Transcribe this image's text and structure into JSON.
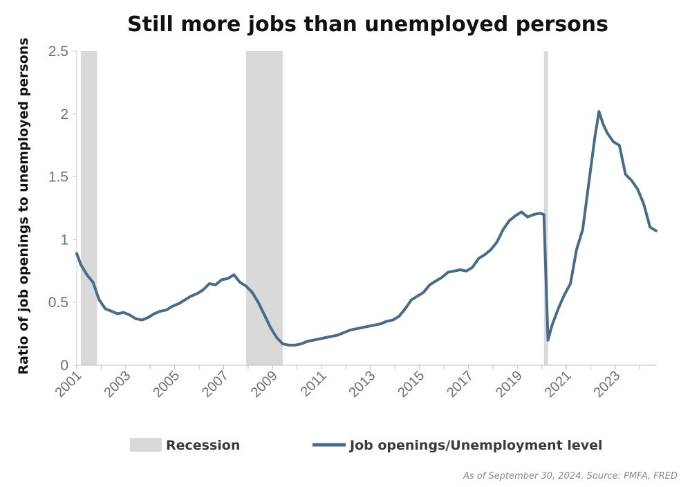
{
  "chart_data": {
    "type": "line",
    "title": "Still more jobs than unemployed persons",
    "xlabel": "",
    "ylabel": "Ratio of job openings to unemployed persons",
    "ylim": [
      0,
      2.5
    ],
    "xlim": [
      "2001-01",
      "2024-09"
    ],
    "y_ticks": [
      "0",
      "0.5",
      "1",
      "1.5",
      "2",
      "2.5"
    ],
    "x_ticks": [
      "2001",
      "2003",
      "2005",
      "2007",
      "2009",
      "2011",
      "2013",
      "2015",
      "2017",
      "2019",
      "2021",
      "2023"
    ],
    "grid": false,
    "legend": {
      "position": "bottom",
      "entries": [
        "Recession",
        "Job openings/Unemployment level"
      ]
    },
    "recessions": [
      {
        "label": "Recession",
        "start": "2001-03",
        "end": "2001-11"
      },
      {
        "label": "Recession",
        "start": "2007-12",
        "end": "2009-06"
      },
      {
        "label": "Recession",
        "start": "2020-02",
        "end": "2020-04"
      }
    ],
    "series": [
      {
        "name": "Job openings/Unemployment level",
        "color": "#4a6b87",
        "points": [
          [
            "2001-01",
            0.89
          ],
          [
            "2001-03",
            0.8
          ],
          [
            "2001-06",
            0.72
          ],
          [
            "2001-09",
            0.66
          ],
          [
            "2001-12",
            0.52
          ],
          [
            "2002-03",
            0.45
          ],
          [
            "2002-06",
            0.43
          ],
          [
            "2002-09",
            0.41
          ],
          [
            "2002-12",
            0.42
          ],
          [
            "2003-03",
            0.4
          ],
          [
            "2003-06",
            0.37
          ],
          [
            "2003-09",
            0.36
          ],
          [
            "2003-12",
            0.38
          ],
          [
            "2004-03",
            0.41
          ],
          [
            "2004-06",
            0.43
          ],
          [
            "2004-09",
            0.44
          ],
          [
            "2004-12",
            0.47
          ],
          [
            "2005-03",
            0.49
          ],
          [
            "2005-06",
            0.52
          ],
          [
            "2005-09",
            0.55
          ],
          [
            "2005-12",
            0.57
          ],
          [
            "2006-03",
            0.6
          ],
          [
            "2006-06",
            0.65
          ],
          [
            "2006-09",
            0.64
          ],
          [
            "2006-12",
            0.68
          ],
          [
            "2007-03",
            0.69
          ],
          [
            "2007-06",
            0.72
          ],
          [
            "2007-09",
            0.66
          ],
          [
            "2007-12",
            0.63
          ],
          [
            "2008-03",
            0.58
          ],
          [
            "2008-06",
            0.5
          ],
          [
            "2008-09",
            0.4
          ],
          [
            "2008-12",
            0.3
          ],
          [
            "2009-03",
            0.22
          ],
          [
            "2009-06",
            0.17
          ],
          [
            "2009-09",
            0.16
          ],
          [
            "2009-12",
            0.16
          ],
          [
            "2010-03",
            0.17
          ],
          [
            "2010-06",
            0.19
          ],
          [
            "2010-09",
            0.2
          ],
          [
            "2010-12",
            0.21
          ],
          [
            "2011-03",
            0.22
          ],
          [
            "2011-06",
            0.23
          ],
          [
            "2011-09",
            0.24
          ],
          [
            "2011-12",
            0.26
          ],
          [
            "2012-03",
            0.28
          ],
          [
            "2012-06",
            0.29
          ],
          [
            "2012-09",
            0.3
          ],
          [
            "2012-12",
            0.31
          ],
          [
            "2013-03",
            0.32
          ],
          [
            "2013-06",
            0.33
          ],
          [
            "2013-09",
            0.35
          ],
          [
            "2013-12",
            0.36
          ],
          [
            "2014-03",
            0.39
          ],
          [
            "2014-06",
            0.45
          ],
          [
            "2014-09",
            0.52
          ],
          [
            "2014-12",
            0.55
          ],
          [
            "2015-03",
            0.58
          ],
          [
            "2015-06",
            0.64
          ],
          [
            "2015-09",
            0.67
          ],
          [
            "2015-12",
            0.7
          ],
          [
            "2016-03",
            0.74
          ],
          [
            "2016-06",
            0.75
          ],
          [
            "2016-09",
            0.76
          ],
          [
            "2016-12",
            0.75
          ],
          [
            "2017-03",
            0.78
          ],
          [
            "2017-06",
            0.85
          ],
          [
            "2017-09",
            0.88
          ],
          [
            "2017-12",
            0.92
          ],
          [
            "2018-03",
            0.98
          ],
          [
            "2018-06",
            1.08
          ],
          [
            "2018-09",
            1.15
          ],
          [
            "2018-12",
            1.19
          ],
          [
            "2019-03",
            1.22
          ],
          [
            "2019-06",
            1.18
          ],
          [
            "2019-09",
            1.2
          ],
          [
            "2019-12",
            1.21
          ],
          [
            "2020-02",
            1.2
          ],
          [
            "2020-04",
            0.2
          ],
          [
            "2020-06",
            0.32
          ],
          [
            "2020-09",
            0.45
          ],
          [
            "2020-12",
            0.56
          ],
          [
            "2021-03",
            0.65
          ],
          [
            "2021-06",
            0.92
          ],
          [
            "2021-09",
            1.08
          ],
          [
            "2021-12",
            1.45
          ],
          [
            "2022-03",
            1.82
          ],
          [
            "2022-05",
            2.02
          ],
          [
            "2022-07",
            1.92
          ],
          [
            "2022-09",
            1.85
          ],
          [
            "2022-12",
            1.78
          ],
          [
            "2023-03",
            1.75
          ],
          [
            "2023-06",
            1.52
          ],
          [
            "2023-09",
            1.47
          ],
          [
            "2023-12",
            1.4
          ],
          [
            "2024-03",
            1.28
          ],
          [
            "2024-06",
            1.1
          ],
          [
            "2024-09",
            1.07
          ]
        ]
      }
    ],
    "source_note": "As of September 30, 2024. Source: PMFA, FRED"
  }
}
